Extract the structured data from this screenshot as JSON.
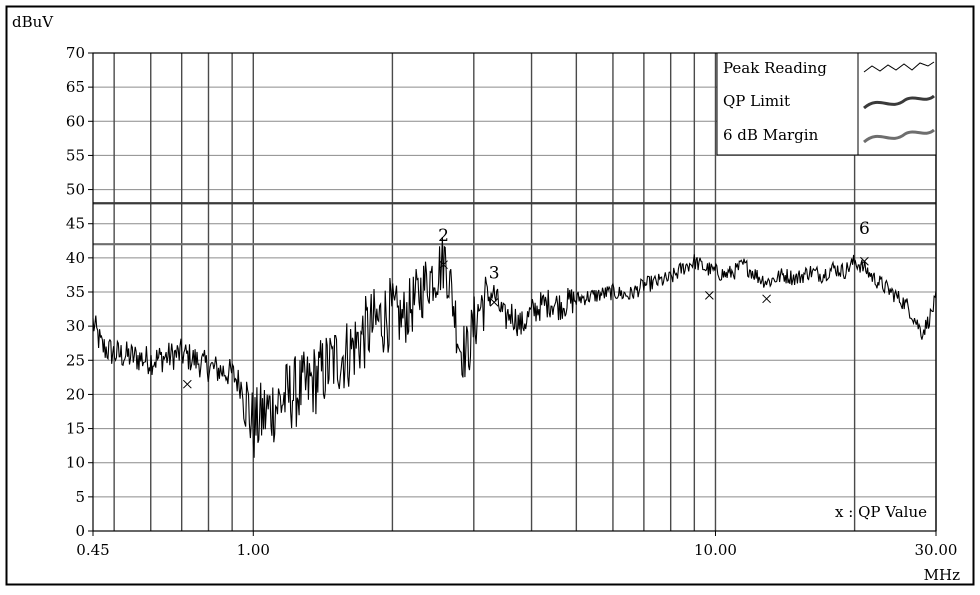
{
  "chart_data": {
    "type": "line",
    "title": "",
    "ylabel": "dBuV",
    "xlabel": "MHz",
    "x_scale": "log",
    "xlim": [
      0.45,
      30.0
    ],
    "ylim": [
      0,
      70
    ],
    "y_ticks": [
      0,
      5,
      10,
      15,
      20,
      25,
      30,
      35,
      40,
      45,
      50,
      55,
      60,
      65,
      70
    ],
    "y_tick_labels": [
      "0",
      "5",
      "10",
      "15",
      "20",
      "25",
      "30",
      "35",
      "40",
      "45",
      "50",
      "55",
      "60",
      "65",
      "70"
    ],
    "x_tick_labels": [
      {
        "x": 0.45,
        "label": "0.45"
      },
      {
        "x": 1.0,
        "label": "1.00"
      },
      {
        "x": 10.0,
        "label": "10.00"
      },
      {
        "x": 30.0,
        "label": "30.00"
      }
    ],
    "x_gridlines": [
      0.5,
      0.6,
      0.7,
      0.8,
      0.9,
      1.0,
      2.0,
      3.0,
      4.0,
      5.0,
      6.0,
      7.0,
      8.0,
      9.0,
      10.0,
      20.0,
      30.0
    ],
    "y_grid": true,
    "legend": {
      "placement": "top-right",
      "entries": [
        {
          "label": "Peak Reading",
          "color": "#000000"
        },
        {
          "label": "QP Limit",
          "color": "#3a3a3a"
        },
        {
          "label": "6 dB Margin",
          "color": "#6e6e6e"
        }
      ]
    },
    "series": [
      {
        "name": "Peak Reading",
        "color": "#000000",
        "x": [
          0.45,
          0.47,
          0.5,
          0.55,
          0.6,
          0.65,
          0.7,
          0.75,
          0.8,
          0.85,
          0.9,
          0.95,
          1.0,
          1.05,
          1.1,
          1.2,
          1.3,
          1.4,
          1.5,
          1.6,
          1.7,
          1.8,
          1.9,
          2.0,
          2.1,
          2.2,
          2.3,
          2.4,
          2.5,
          2.6,
          2.7,
          2.8,
          2.9,
          3.0,
          3.1,
          3.3,
          3.5,
          3.6,
          3.8,
          4.0,
          4.2,
          4.4,
          4.6,
          5.0,
          5.5,
          6.0,
          6.5,
          7.0,
          7.5,
          8.0,
          8.5,
          9.0,
          9.5,
          10.0,
          10.5,
          11.0,
          11.5,
          12.0,
          12.5,
          13.0,
          14.0,
          15.0,
          16.0,
          17.0,
          18.0,
          19.0,
          20.0,
          21.0,
          22.0,
          23.0,
          24.0,
          25.0,
          26.0,
          27.0,
          28.0,
          29.0,
          30.0
        ],
        "y": [
          30.5,
          27,
          26,
          25.5,
          25,
          25.5,
          26,
          25,
          24,
          23.5,
          23,
          21,
          15,
          17,
          18,
          20,
          21,
          23,
          25,
          26,
          28,
          30,
          31,
          32,
          31,
          33,
          35,
          37,
          38,
          40,
          34,
          27,
          26,
          30,
          33,
          35,
          31,
          32,
          30,
          32,
          33,
          33.5,
          33,
          34,
          34.5,
          35,
          34.5,
          36,
          36.5,
          37,
          38.5,
          39.5,
          38.5,
          38,
          37.5,
          38,
          39,
          38,
          37,
          36.5,
          37.5,
          37,
          38,
          37.5,
          38.5,
          38,
          39.5,
          38.5,
          37,
          36,
          35,
          34,
          33,
          31,
          29,
          31,
          34
        ]
      },
      {
        "name": "QP Limit",
        "color": "#3a3a3a",
        "x": [
          0.45,
          30.0
        ],
        "y": [
          48,
          48
        ]
      },
      {
        "name": "6 dB Margin",
        "color": "#6e6e6e",
        "x": [
          0.45,
          30.0
        ],
        "y": [
          42,
          42
        ]
      }
    ],
    "qp_values": {
      "label": "x : QP Value",
      "points": [
        {
          "x": 0.72,
          "y": 21.5
        },
        {
          "x": 2.58,
          "y": 39
        },
        {
          "x": 3.32,
          "y": 33.5
        },
        {
          "x": 9.7,
          "y": 34.5
        },
        {
          "x": 12.9,
          "y": 34
        },
        {
          "x": 21.0,
          "y": 39.5
        }
      ]
    },
    "markers": [
      {
        "x": 2.58,
        "y": 42.5,
        "label": "2"
      },
      {
        "x": 3.32,
        "y": 37,
        "label": "3"
      },
      {
        "x": 21.0,
        "y": 43.5,
        "label": "6"
      }
    ]
  }
}
